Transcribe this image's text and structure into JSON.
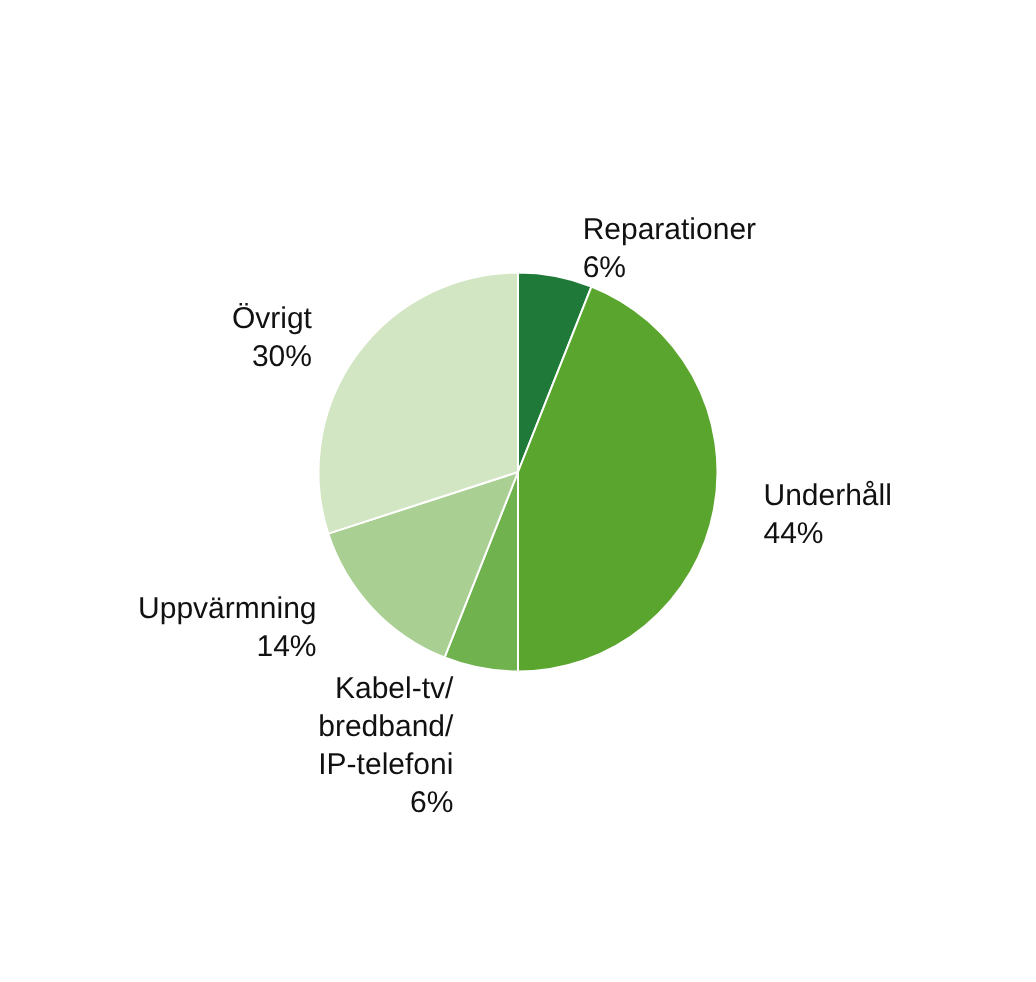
{
  "chart_data": {
    "type": "pie",
    "categories": [
      "Reparationer",
      "Underhåll",
      "Kabel-tv/bredband/IP-telefoni",
      "Uppvärmning",
      "Övrigt"
    ],
    "values": [
      6,
      44,
      6,
      14,
      30
    ],
    "value_labels": [
      "6%",
      "44%",
      "6%",
      "14%",
      "30%"
    ],
    "colors": [
      "#1f7a3a",
      "#5aa52e",
      "#70b24e",
      "#a9cf92",
      "#d3e6c3"
    ]
  }
}
